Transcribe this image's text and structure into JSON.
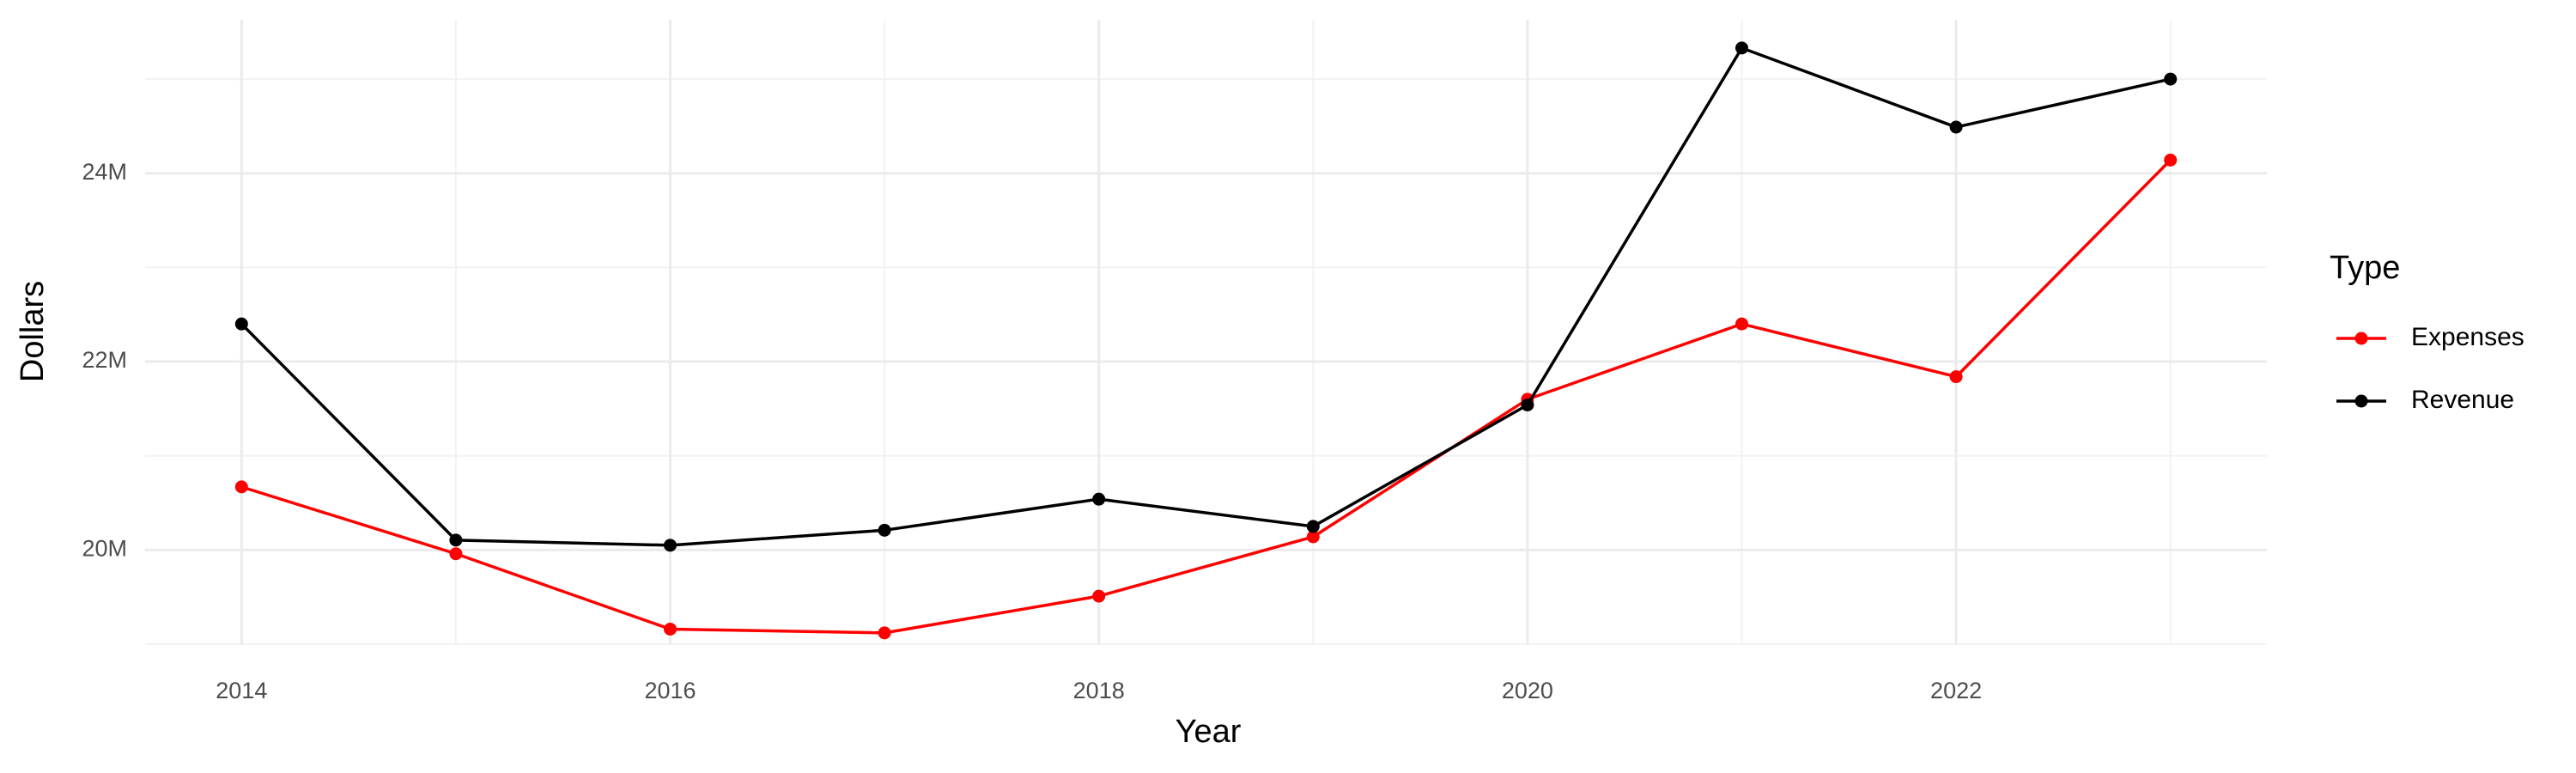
{
  "chart_data": {
    "type": "line",
    "x_label": "Year",
    "y_label": "Dollars",
    "x": [
      2014,
      2015,
      2016,
      2017,
      2018,
      2019,
      2020,
      2021,
      2022,
      2023
    ],
    "series": [
      {
        "name": "Expenses",
        "color": "#ff0000",
        "values": [
          20670000,
          19960000,
          19160000,
          19120000,
          19510000,
          20140000,
          21600000,
          22400000,
          21840000,
          24140000
        ]
      },
      {
        "name": "Revenue",
        "color": "#000000",
        "values": [
          22400000,
          20105000,
          20050000,
          20210000,
          20540000,
          20250000,
          21540000,
          25330000,
          24490000,
          25000000
        ]
      }
    ],
    "xlim": [
      2013.55,
      2023.45
    ],
    "xticks": [
      2014,
      2016,
      2018,
      2020,
      2022
    ],
    "ylim": [
      19000000,
      25630000
    ],
    "yticks": [
      {
        "value": 20000000,
        "label": "20M"
      },
      {
        "value": 22000000,
        "label": "22M"
      },
      {
        "value": 24000000,
        "label": "24M"
      }
    ],
    "legend_title": "Type",
    "legend_position": "right",
    "grid": true
  }
}
